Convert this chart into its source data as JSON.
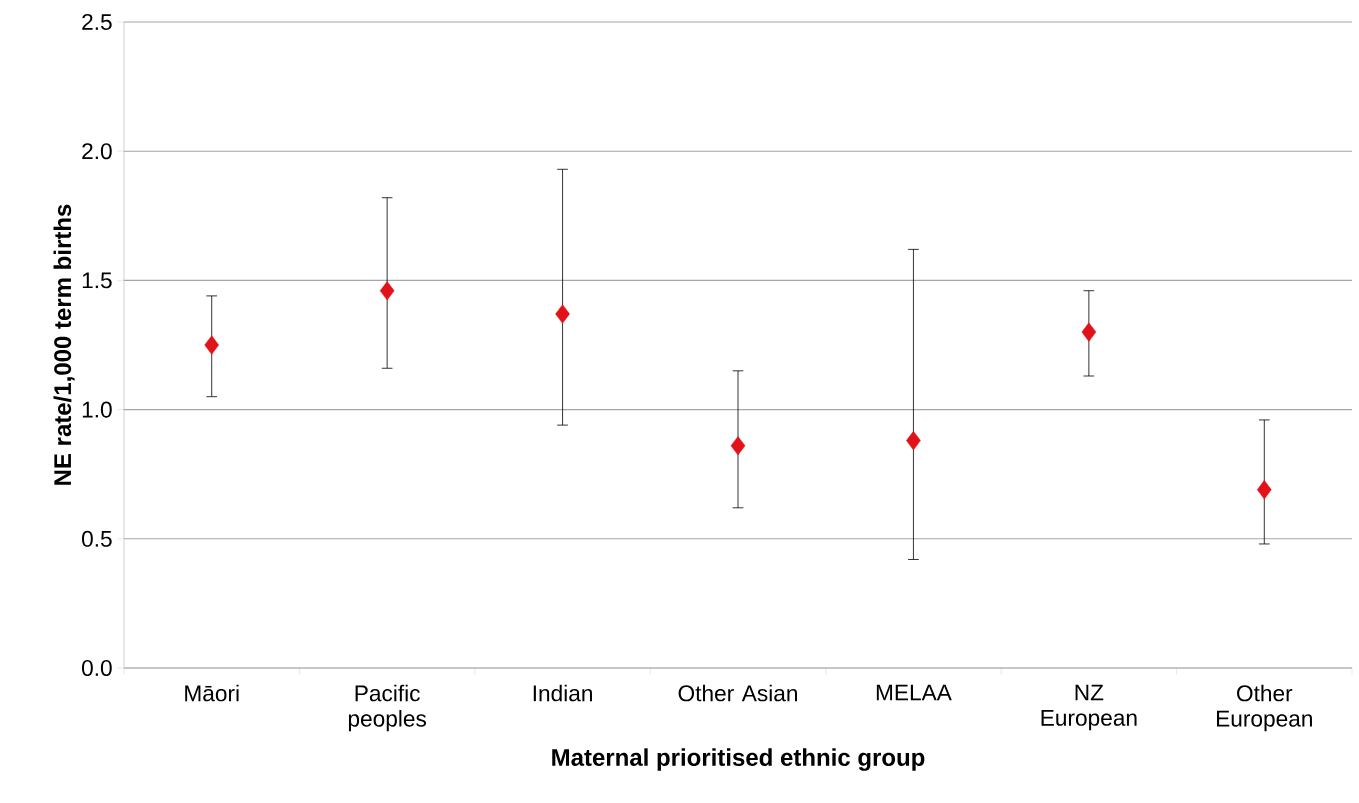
{
  "chart_data": {
    "type": "scatter",
    "xlabel": "Maternal prioritised ethnic group",
    "ylabel": "NE rate/1,000 term births",
    "categories": [
      "Māori",
      "Pacific peoples",
      "Indian",
      "Other Asian",
      "MELAA",
      "NZ European",
      "Other European"
    ],
    "values": [
      1.25,
      1.46,
      1.37,
      0.86,
      0.88,
      1.3,
      0.69
    ],
    "errors": [
      [
        1.05,
        1.44
      ],
      [
        1.16,
        1.82
      ],
      [
        0.94,
        1.93
      ],
      [
        0.62,
        1.15
      ],
      [
        0.42,
        1.62
      ],
      [
        1.13,
        1.46
      ],
      [
        0.48,
        0.96
      ]
    ],
    "color": "#e2121b",
    "marker": "diamond",
    "ylim": [
      0,
      2.5
    ],
    "yticks": [
      {
        "value": 0,
        "label": "0.0"
      },
      {
        "value": 0.5,
        "label": "0.5"
      },
      {
        "value": 1,
        "label": "1.0"
      },
      {
        "value": 1.5,
        "label": "1.5"
      },
      {
        "value": 2,
        "label": "2.0"
      },
      {
        "value": 2.5,
        "label": "2.5"
      }
    ],
    "grid": "y"
  }
}
